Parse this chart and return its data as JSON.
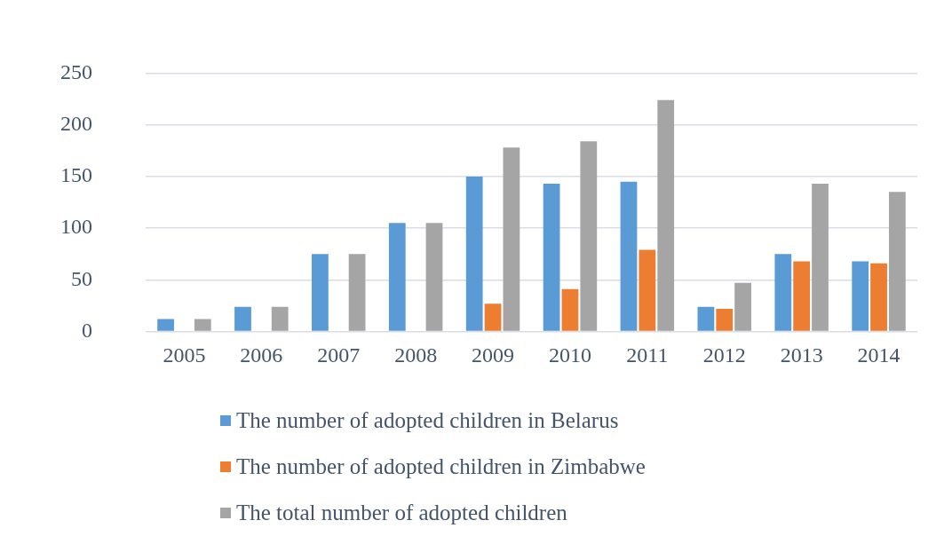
{
  "chart_data": {
    "type": "bar",
    "categories": [
      "2005",
      "2006",
      "2007",
      "2008",
      "2009",
      "2010",
      "2011",
      "2012",
      "2013",
      "2014"
    ],
    "series": [
      {
        "name": "The number of adopted children in Belarus",
        "color": "#5b9bd5",
        "values": [
          12,
          24,
          75,
          105,
          150,
          143,
          145,
          24,
          75,
          68
        ]
      },
      {
        "name": "The number of adopted children in Zimbabwe",
        "color": "#ed7d31",
        "values": [
          null,
          null,
          null,
          null,
          27,
          41,
          79,
          22,
          68,
          66
        ]
      },
      {
        "name": "The total number of adopted children",
        "color": "#a5a5a5",
        "values": [
          12,
          24,
          75,
          105,
          178,
          184,
          224,
          47,
          143,
          135
        ]
      }
    ],
    "ylim": [
      0,
      250
    ],
    "yticks": [
      0,
      50,
      100,
      150,
      200,
      250
    ],
    "grid": "y",
    "legend": "bottom"
  }
}
